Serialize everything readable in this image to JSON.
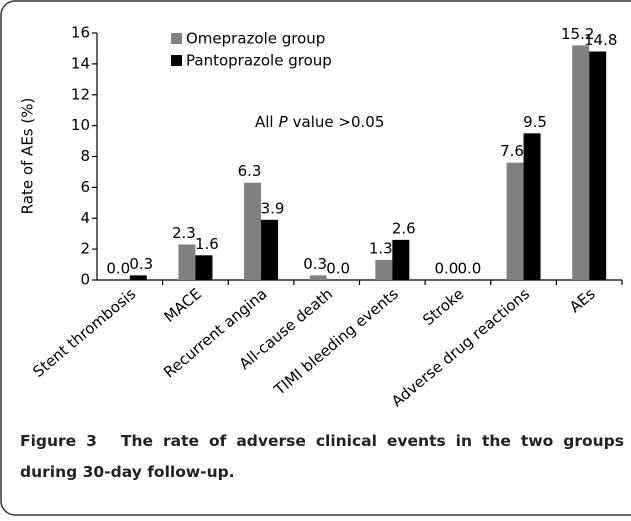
{
  "chart_data": {
    "type": "bar",
    "y_label": "Rate of AEs (%)",
    "annotation": {
      "prefix": "All",
      "italic": "P",
      "suffix": "value >0.05"
    },
    "categories": [
      "Stent thrombosis",
      "MACE",
      "Recurrent angina",
      "All-cause death",
      "TIMI bleeding events",
      "Stroke",
      "Adverse drug reactions",
      "AEs"
    ],
    "series": [
      {
        "name": "Omeprazole group",
        "color": "#808080",
        "values": [
          0,
          2.3,
          6.3,
          0.3,
          1.3,
          0,
          7.6,
          15.2
        ],
        "value_labels": [
          "0.0",
          "2.3",
          "6.3",
          "0.3",
          "1.3",
          "0.0",
          "7.6",
          "15.2"
        ]
      },
      {
        "name": "Pantoprazole group",
        "color": "#000000",
        "values": [
          0.3,
          1.6,
          3.9,
          0,
          2.6,
          0,
          9.5,
          14.8
        ],
        "value_labels": [
          "0.3",
          "1.6",
          "3.9",
          "0.0",
          "2.6",
          "0.0",
          "9.5",
          "14.8"
        ]
      }
    ],
    "ylim": [
      0,
      16
    ],
    "yticks": [
      0,
      2,
      4,
      6,
      8,
      10,
      12,
      14,
      16
    ],
    "grid": false,
    "legend": "top-left"
  },
  "caption": {
    "label": "Figure 3",
    "text": "The rate of adverse clinical events in the two groups during 30-day follow-up."
  }
}
